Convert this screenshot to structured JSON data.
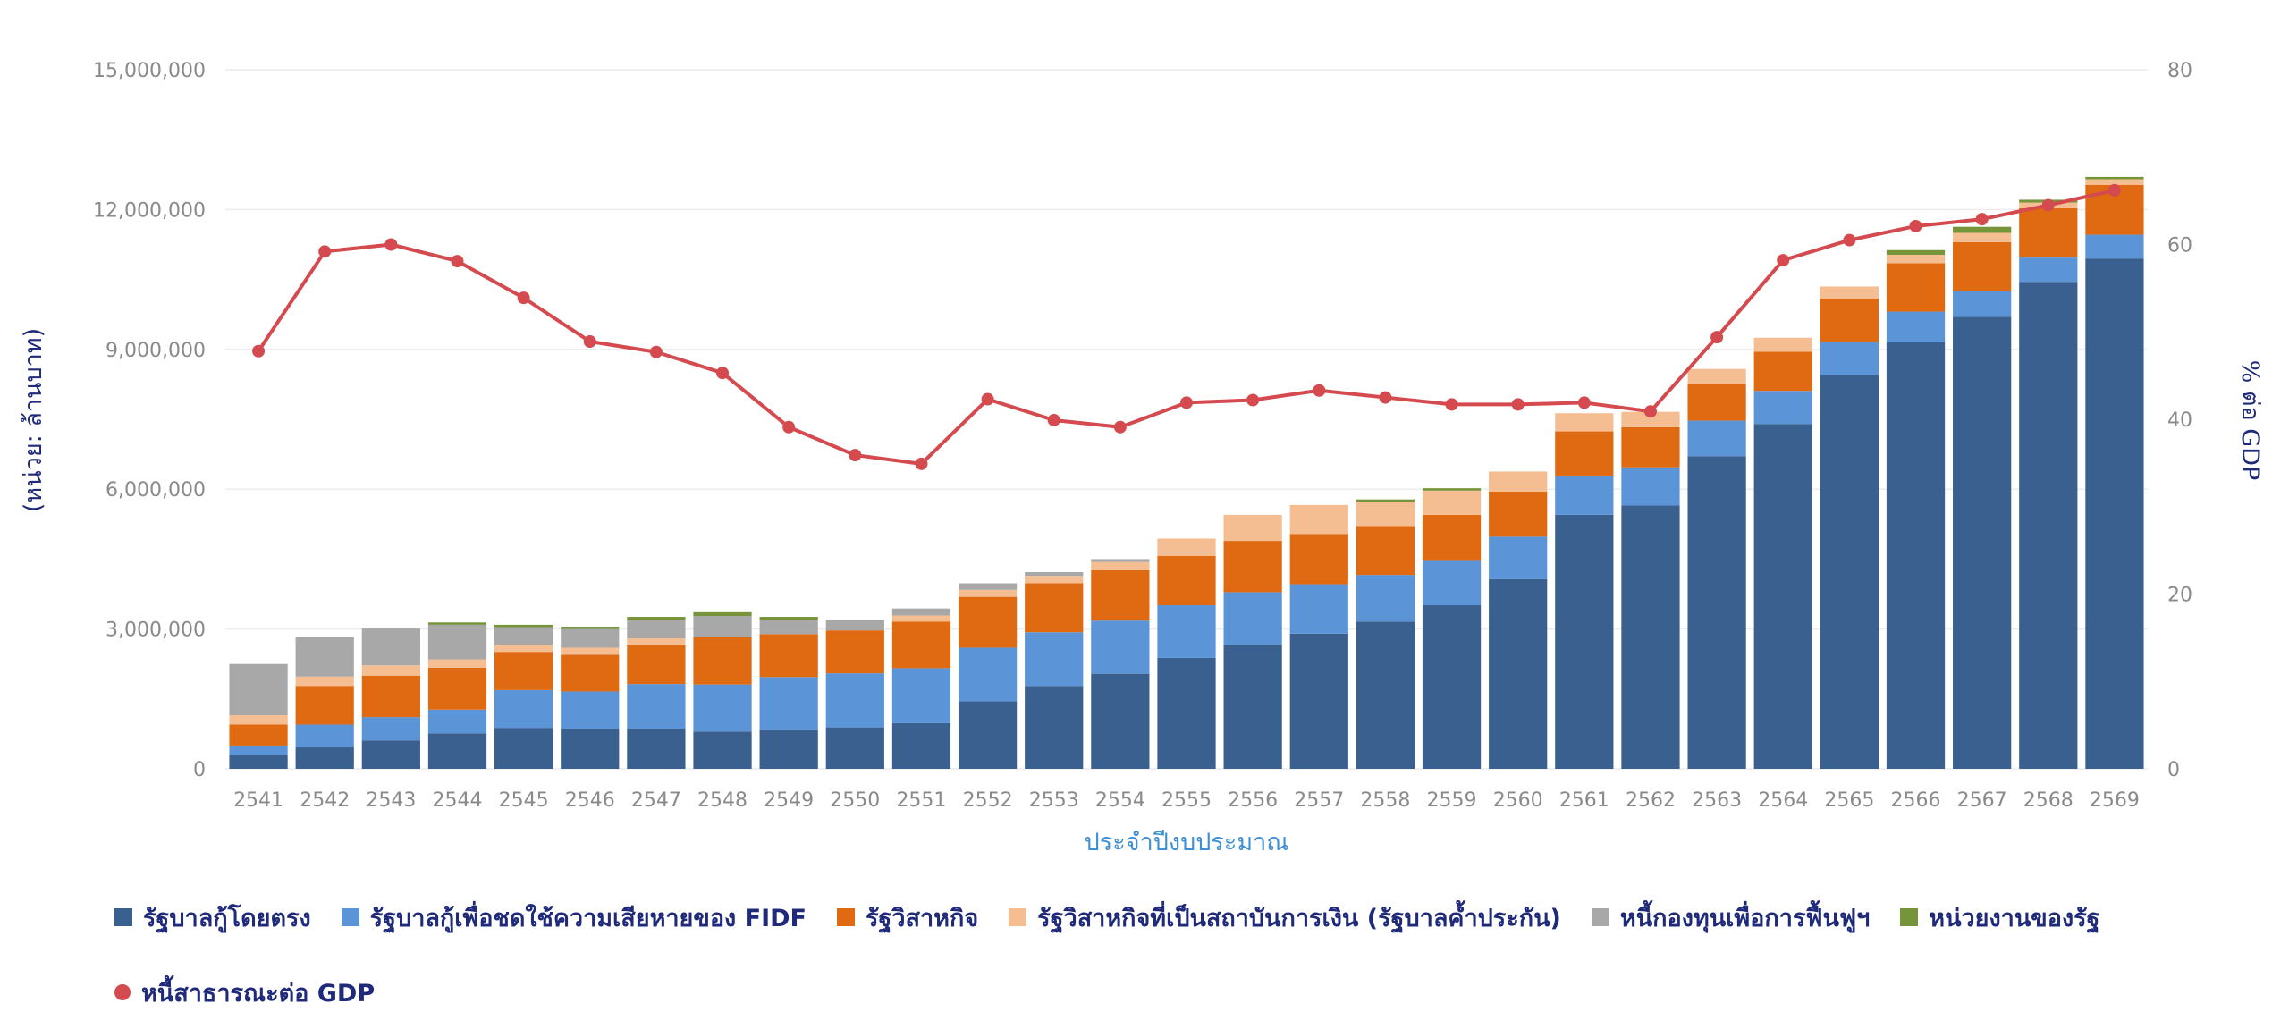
{
  "chart_data": {
    "type": "bar",
    "stacked": true,
    "ylabel": "(หน่วย: ล้านบาท)",
    "y2label": "% ต่อ GDP",
    "xlabel": "ประจำปีงบประมาณ",
    "ylim": [
      0,
      15000000
    ],
    "y2lim": [
      0,
      80
    ],
    "yticks": [
      "0",
      "3,000,000",
      "6,000,000",
      "9,000,000",
      "12,000,000",
      "15,000,000"
    ],
    "y2ticks": [
      "0",
      "20",
      "40",
      "60",
      "80"
    ],
    "grid": true,
    "legend_position": "bottom",
    "categories": [
      "2541",
      "2542",
      "2543",
      "2544",
      "2545",
      "2546",
      "2547",
      "2548",
      "2549",
      "2550",
      "2551",
      "2552",
      "2553",
      "2554",
      "2555",
      "2556",
      "2557",
      "2558",
      "2559",
      "2560",
      "2561",
      "2562",
      "2563",
      "2564",
      "2565",
      "2566",
      "2567",
      "2568",
      "2569"
    ],
    "series": [
      {
        "name": "รัฐบาลกู้โดยตรง",
        "color": "#3a6090",
        "values": [
          300000,
          460000,
          610000,
          760000,
          880000,
          860000,
          860000,
          800000,
          830000,
          890000,
          980000,
          1450000,
          1780000,
          2040000,
          2380000,
          2660000,
          2900000,
          3160000,
          3510000,
          4070000,
          5450000,
          5650000,
          6710000,
          7400000,
          8450000,
          9150000,
          9700000,
          10450000,
          10950000
        ]
      },
      {
        "name": "รัฐบาลกู้เพื่อชดใช้ความเสียหายของ FIDF",
        "color": "#5b95d8",
        "values": [
          200000,
          490000,
          500000,
          510000,
          810000,
          800000,
          960000,
          1010000,
          1140000,
          1160000,
          1180000,
          1150000,
          1150000,
          1140000,
          1130000,
          1130000,
          1060000,
          1000000,
          970000,
          910000,
          830000,
          820000,
          760000,
          710000,
          710000,
          660000,
          550000,
          520000,
          510000
        ]
      },
      {
        "name": "รัฐวิสาหกิจ",
        "color": "#e06a12",
        "values": [
          450000,
          830000,
          890000,
          900000,
          820000,
          790000,
          830000,
          1020000,
          920000,
          920000,
          1000000,
          1090000,
          1050000,
          1080000,
          1060000,
          1100000,
          1080000,
          1050000,
          970000,
          970000,
          960000,
          860000,
          790000,
          840000,
          930000,
          1040000,
          1050000,
          1060000,
          1070000
        ]
      },
      {
        "name": "รัฐวิสาหกิจที่เป็นสถาบันการเงิน (รัฐบาลค้ำประกัน)",
        "color": "#f5be92",
        "values": [
          200000,
          200000,
          220000,
          180000,
          150000,
          150000,
          150000,
          0,
          0,
          0,
          130000,
          150000,
          160000,
          180000,
          370000,
          560000,
          620000,
          520000,
          520000,
          430000,
          390000,
          330000,
          320000,
          300000,
          260000,
          180000,
          200000,
          120000,
          120000
        ]
      },
      {
        "name": "หนี้กองทุนเพื่อการฟื้นฟูฯ",
        "color": "#a8a8a8",
        "values": [
          1100000,
          850000,
          790000,
          740000,
          380000,
          400000,
          400000,
          450000,
          310000,
          230000,
          150000,
          140000,
          80000,
          60000,
          0,
          0,
          0,
          0,
          0,
          0,
          0,
          0,
          0,
          0,
          0,
          0,
          0,
          0,
          0
        ]
      },
      {
        "name": "หน่วยงานของรัฐ",
        "color": "#76953a",
        "values": [
          0,
          0,
          0,
          50000,
          50000,
          50000,
          60000,
          80000,
          60000,
          0,
          0,
          0,
          0,
          0,
          0,
          0,
          0,
          50000,
          50000,
          0,
          0,
          0,
          0,
          0,
          0,
          100000,
          130000,
          60000,
          50000
        ]
      }
    ],
    "line": {
      "name": "หนี้สาธารณะต่อ GDP",
      "color": "#d44a4f",
      "axis": "right",
      "values": [
        47.8,
        59.2,
        60.0,
        58.1,
        53.9,
        48.9,
        47.7,
        45.3,
        39.1,
        35.9,
        34.9,
        42.3,
        39.9,
        39.1,
        41.9,
        42.2,
        43.3,
        42.5,
        41.7,
        41.7,
        41.9,
        40.9,
        49.4,
        58.2,
        60.5,
        62.1,
        62.9,
        64.5,
        66.2
      ]
    }
  }
}
